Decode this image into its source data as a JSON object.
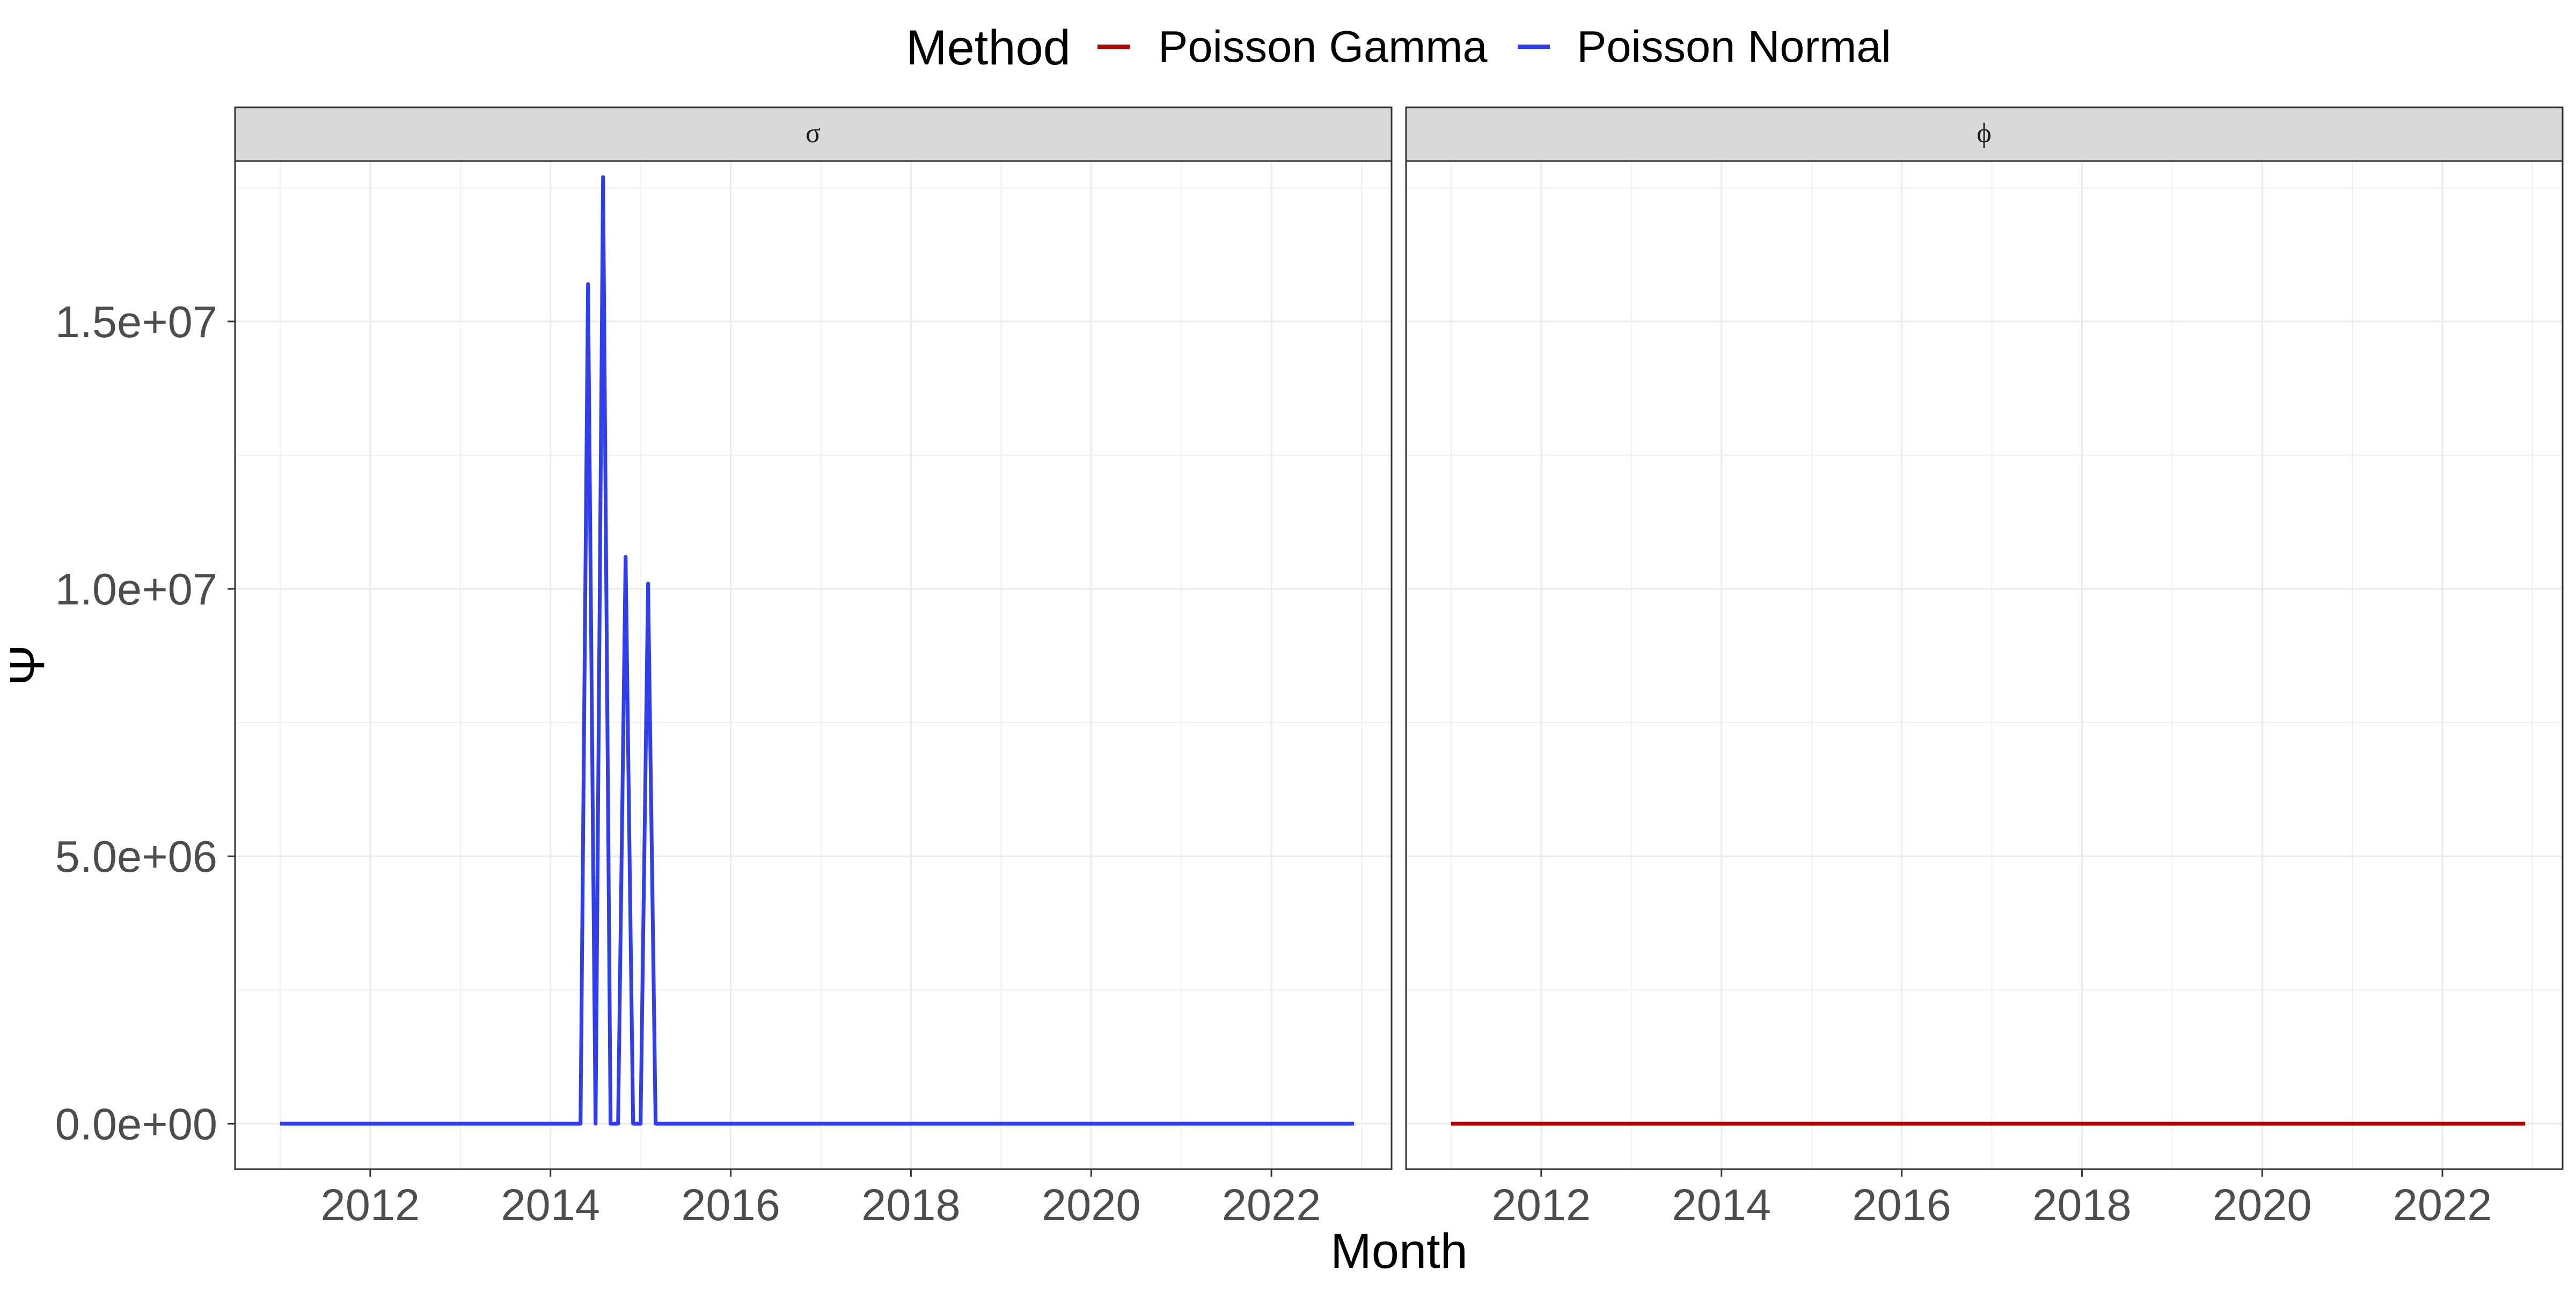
{
  "chart_data": {
    "type": "line",
    "facet_variable": "parameter",
    "facets": [
      {
        "label": "σ",
        "series": [
          {
            "name": "Poisson Normal",
            "points": [
              [
                "2011-01",
                0
              ],
              [
                "2014-05",
                0
              ],
              [
                "2014-06",
                15700000
              ],
              [
                "2014-07",
                0
              ],
              [
                "2014-07",
                0
              ],
              [
                "2014-08",
                17700000
              ],
              [
                "2014-09",
                0
              ],
              [
                "2014-10",
                0
              ],
              [
                "2014-11",
                10600000
              ],
              [
                "2014-12",
                0
              ],
              [
                "2015-01",
                0
              ],
              [
                "2015-02",
                10100000
              ],
              [
                "2015-03",
                0
              ],
              [
                "2022-12",
                0
              ]
            ]
          }
        ]
      },
      {
        "label": "ϕ",
        "series": [
          {
            "name": "Poisson Gamma",
            "points": [
              [
                "2011-01",
                0
              ],
              [
                "2022-12",
                0
              ]
            ]
          }
        ]
      }
    ],
    "xlabel": "Month",
    "ylabel": "Ψ",
    "x_ticks": [
      "2012",
      "2014",
      "2016",
      "2018",
      "2020",
      "2022"
    ],
    "y_ticks": [
      "0.0e+00",
      "5.0e+06",
      "1.0e+07",
      "1.5e+07"
    ],
    "y_tick_values": [
      0,
      5000000,
      10000000,
      15000000
    ],
    "xlim": [
      "2010-07",
      "2023-05"
    ],
    "ylim": [
      -850000,
      18000000
    ],
    "grid": true,
    "legend": {
      "title": "Method",
      "position": "top",
      "entries": [
        {
          "name": "Poisson Gamma",
          "color": "#b30000"
        },
        {
          "name": "Poisson Normal",
          "color": "#2e3ef0"
        }
      ]
    }
  }
}
